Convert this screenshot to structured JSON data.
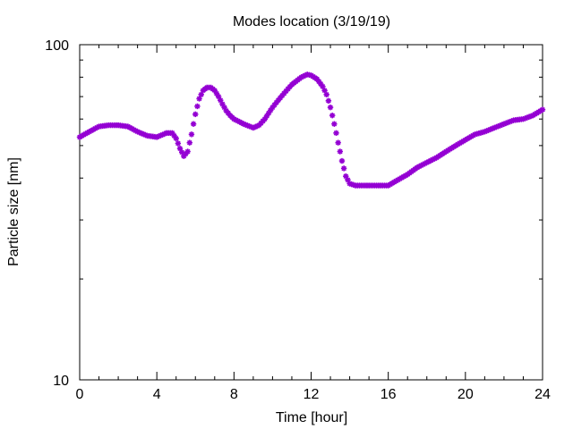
{
  "chart_data": {
    "type": "scatter",
    "title": "Modes location (3/19/19)",
    "xlabel": "Time [hour]",
    "ylabel": "Particle size [nm]",
    "xlim": [
      0,
      24
    ],
    "ylim": [
      10,
      100
    ],
    "yscale": "log",
    "grid": false,
    "legend": "none",
    "x_ticks": [
      0,
      4,
      8,
      12,
      16,
      20,
      24
    ],
    "x_tick_labels": [
      "0",
      "4",
      "8",
      "12",
      "16",
      "20",
      "24"
    ],
    "y_ticks": [
      10,
      100
    ],
    "y_tick_labels": [
      "10",
      "100"
    ],
    "marker_color": "#9400d3",
    "series": [
      {
        "x": [
          0,
          0.5,
          1,
          1.5,
          2,
          2.5,
          3,
          3.5,
          4,
          4.5,
          4.8,
          5,
          5.2,
          5.4,
          5.6,
          5.8,
          6,
          6.2,
          6.4,
          6.6,
          6.8,
          7,
          7.2,
          7.4,
          7.6,
          7.8,
          8,
          8.5,
          9,
          9.3,
          9.6,
          10,
          10.5,
          11,
          11.5,
          11.8,
          12,
          12.3,
          12.6,
          12.8,
          13,
          13.2,
          13.4,
          13.6,
          13.8,
          14,
          14.3,
          14.6,
          15,
          15.5,
          16,
          16.5,
          17,
          17.5,
          18,
          18.5,
          19,
          19.5,
          20,
          20.5,
          21,
          21.5,
          22,
          22.5,
          23,
          23.5,
          24
        ],
        "y": [
          53,
          55,
          57,
          57.5,
          57.5,
          57,
          55,
          53.5,
          53,
          54.5,
          54.5,
          52.5,
          49,
          46.5,
          48,
          54,
          62,
          69,
          73,
          74.5,
          74.5,
          73,
          70,
          66.5,
          63.5,
          61.5,
          60,
          58,
          56.5,
          57.5,
          60,
          65,
          70.5,
          76,
          80,
          81.5,
          81,
          79,
          75,
          71,
          65,
          58,
          51,
          45,
          40.5,
          38.5,
          38,
          38,
          38,
          38,
          38,
          39.5,
          41,
          43,
          44.5,
          46,
          48,
          50,
          52,
          54,
          55,
          56.5,
          58,
          59.5,
          60,
          61.5,
          64
        ]
      }
    ]
  }
}
